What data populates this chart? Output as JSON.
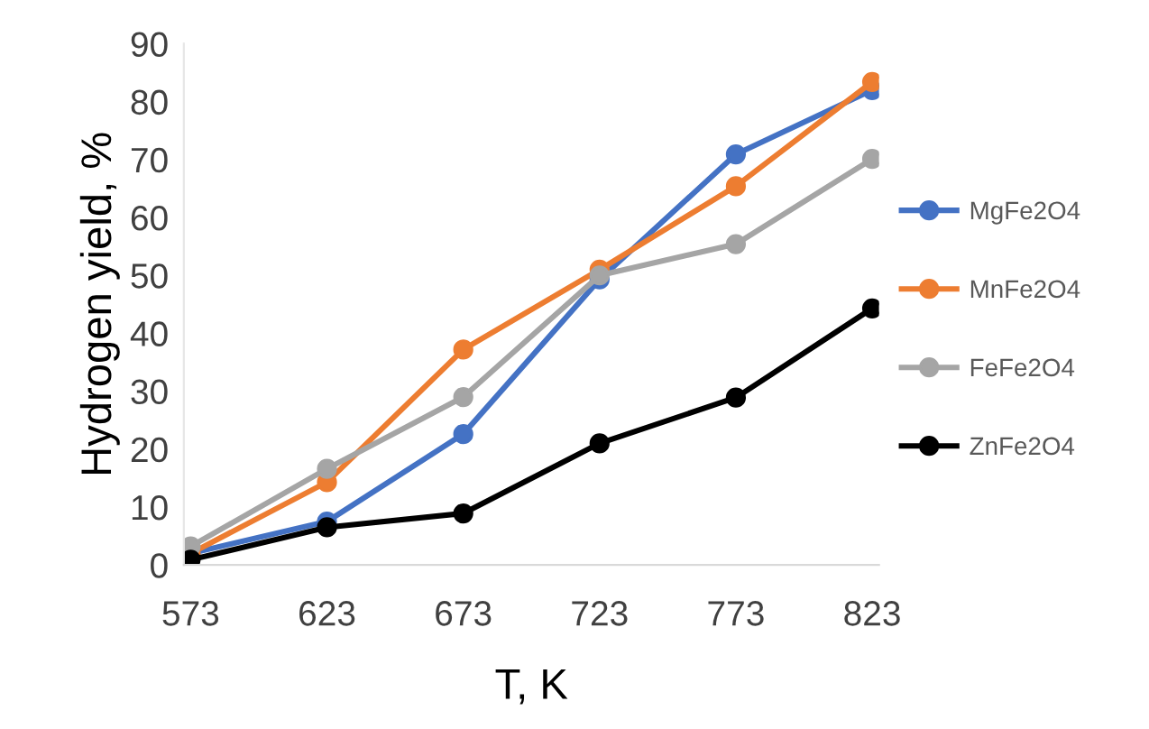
{
  "chart_data": {
    "type": "line",
    "xlabel": "T, K",
    "ylabel": "Hydrogen yield, %",
    "categories": [
      "573",
      "623",
      "673",
      "723",
      "773",
      "823"
    ],
    "series": [
      {
        "name": "MgFe2O4",
        "color": "#4472c4",
        "values": [
          2,
          7.5,
          22.6,
          49.3,
          70.9,
          82
        ]
      },
      {
        "name": "MnFe2O4",
        "color": "#ed7d31",
        "values": [
          2,
          14.3,
          37.2,
          51,
          65.4,
          83.4
        ]
      },
      {
        "name": "FeFe2O4",
        "color": "#a5a5a5",
        "values": [
          3.2,
          16.6,
          29,
          50,
          55.4,
          70.1
        ]
      },
      {
        "name": "ZnFe2O4",
        "color": "#000000",
        "values": [
          0.9,
          6.5,
          8.9,
          21,
          28.9,
          44.3
        ]
      }
    ],
    "ylim": [
      0,
      90
    ],
    "yticks": [
      0,
      10,
      20,
      30,
      40,
      50,
      60,
      70,
      80,
      90
    ],
    "grid": false,
    "legend": "right",
    "marker": "circle",
    "line_style": "solid"
  }
}
